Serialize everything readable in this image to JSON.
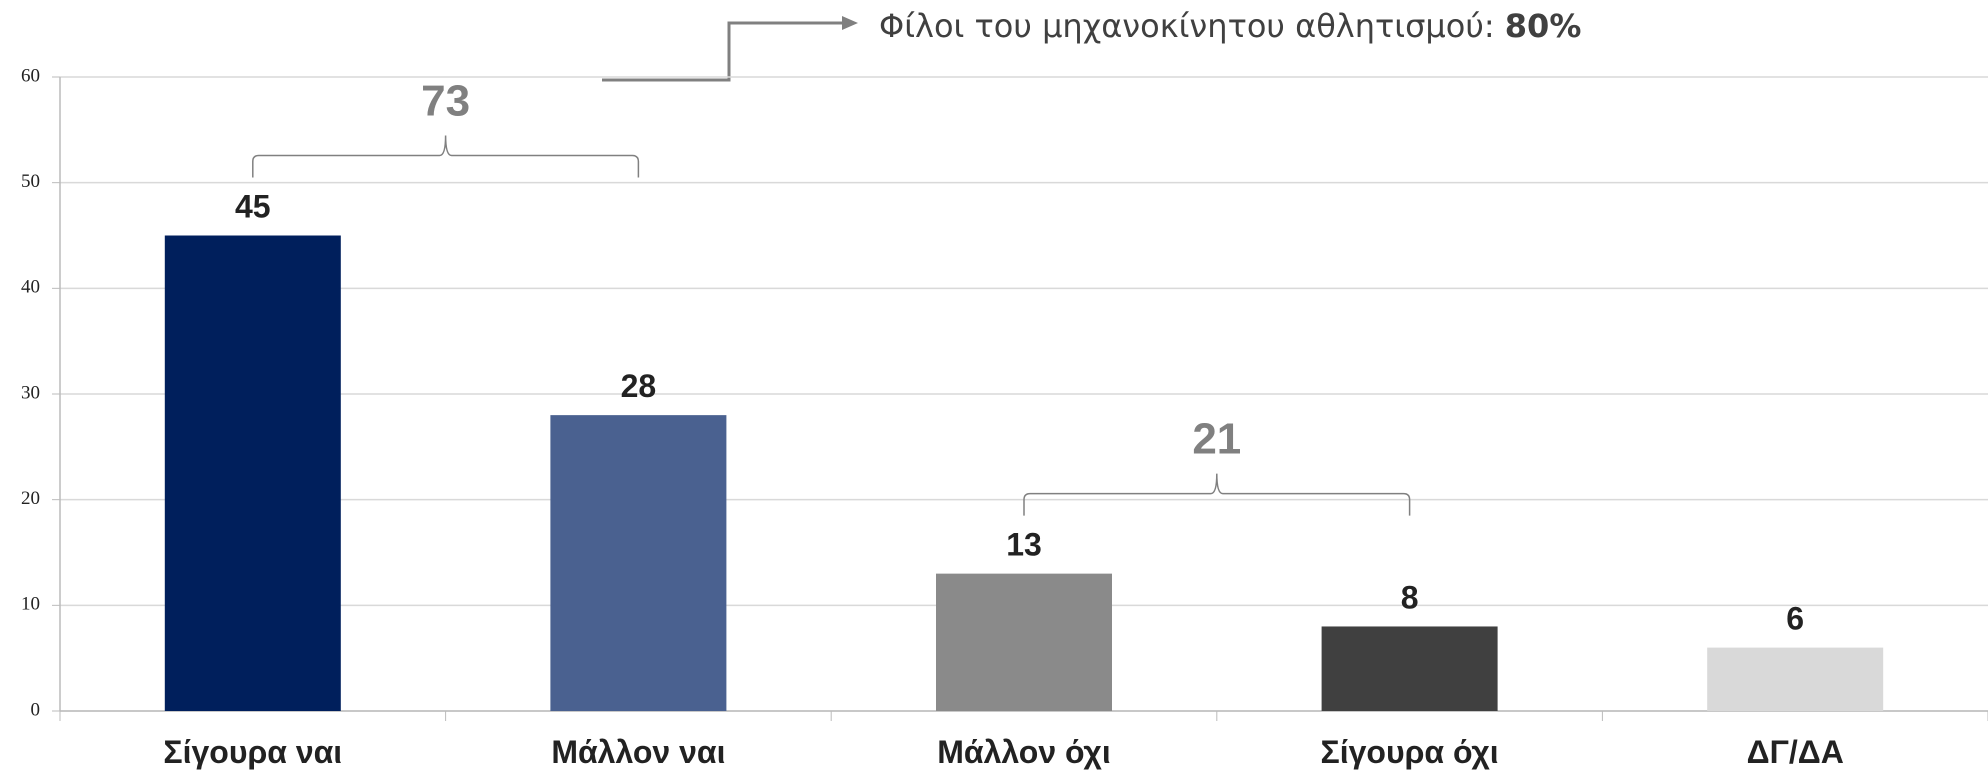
{
  "chart_data": {
    "type": "bar",
    "categories": [
      "Σίγουρα ναι",
      "Μάλλον ναι",
      "Μάλλον όχι",
      "Σίγουρα όχι",
      "ΔΓ/ΔΑ"
    ],
    "values": [
      45,
      28,
      13,
      8,
      6
    ],
    "colors": [
      "#001f5c",
      "#4a6190",
      "#8a8a8a",
      "#404040",
      "#d9d9d9"
    ],
    "ylim": [
      0,
      60
    ],
    "yticks": [
      0,
      10,
      20,
      30,
      40,
      50,
      60
    ],
    "grid": true,
    "annotations": [
      "73",
      "21"
    ],
    "callout": {
      "text": "Φίλοι του μηχανοκίνητου αθλητισμού:",
      "value": "80%"
    }
  }
}
